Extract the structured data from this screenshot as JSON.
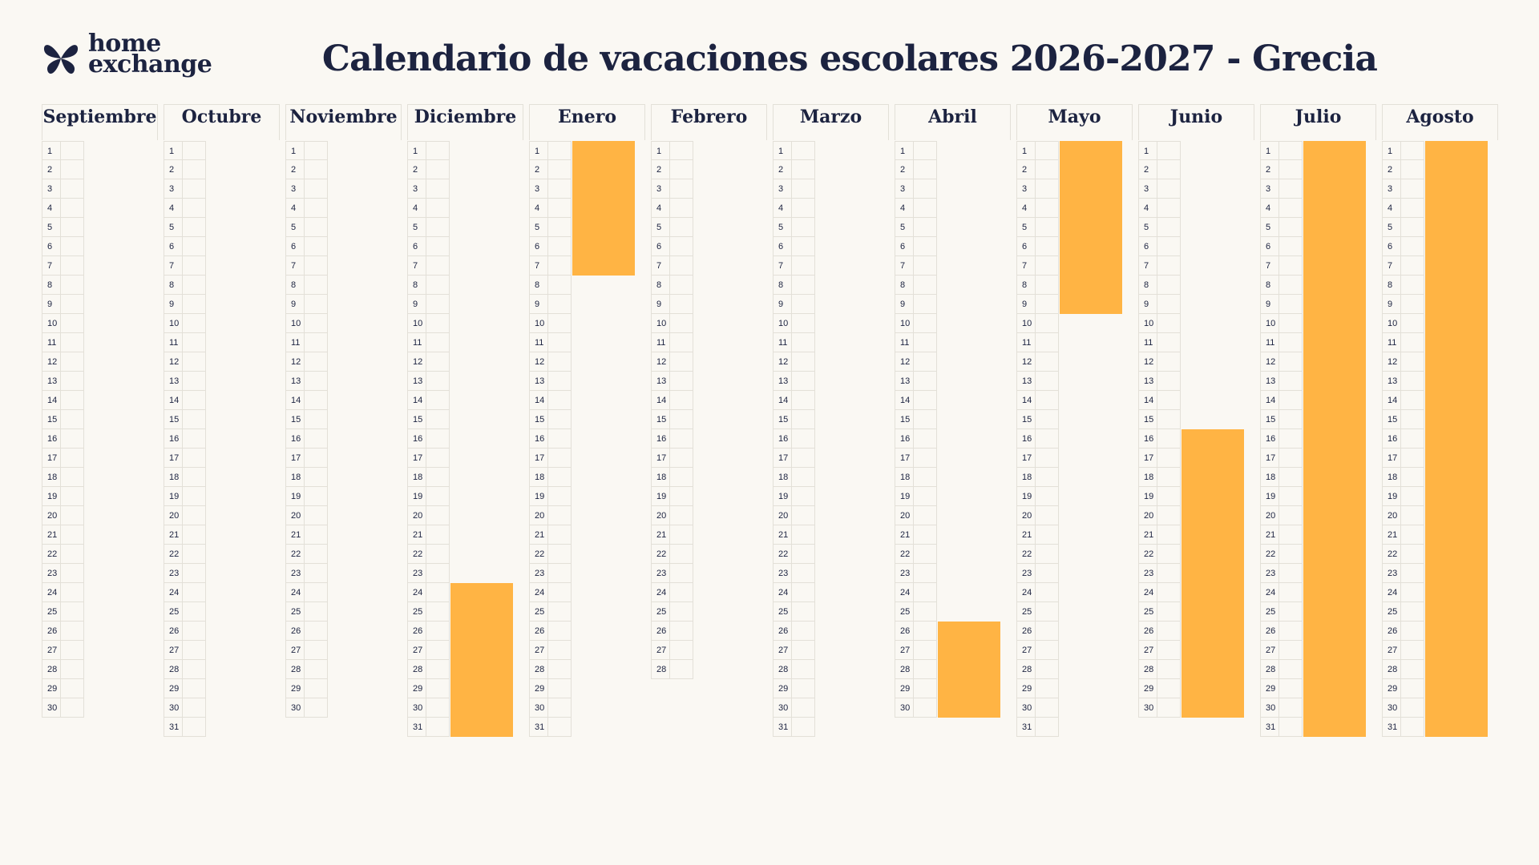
{
  "brand": {
    "line1": "home",
    "line2": "exchange",
    "logo_icon": "butterfly-icon"
  },
  "title": "Calendario de vacaciones escolares 2026-2027 - Grecia",
  "colors": {
    "vacation": "#ffb444",
    "text": "#1c2340",
    "background": "#faf8f3",
    "grid": "#e3e0d8"
  },
  "months": [
    {
      "name": "Septiembre",
      "days": 30,
      "vacations": []
    },
    {
      "name": "Octubre",
      "days": 31,
      "vacations": []
    },
    {
      "name": "Noviembre",
      "days": 30,
      "vacations": []
    },
    {
      "name": "Diciembre",
      "days": 31,
      "vacations": [
        [
          24,
          31
        ]
      ]
    },
    {
      "name": "Enero",
      "days": 31,
      "vacations": [
        [
          1,
          7
        ]
      ]
    },
    {
      "name": "Febrero",
      "days": 28,
      "vacations": []
    },
    {
      "name": "Marzo",
      "days": 31,
      "vacations": []
    },
    {
      "name": "Abril",
      "days": 30,
      "vacations": [
        [
          26,
          30
        ]
      ]
    },
    {
      "name": "Mayo",
      "days": 31,
      "vacations": [
        [
          1,
          9
        ]
      ]
    },
    {
      "name": "Junio",
      "days": 30,
      "vacations": [
        [
          16,
          30
        ]
      ]
    },
    {
      "name": "Julio",
      "days": 31,
      "vacations": [
        [
          1,
          31
        ]
      ]
    },
    {
      "name": "Agosto",
      "days": 31,
      "vacations": [
        [
          1,
          31
        ]
      ]
    }
  ]
}
